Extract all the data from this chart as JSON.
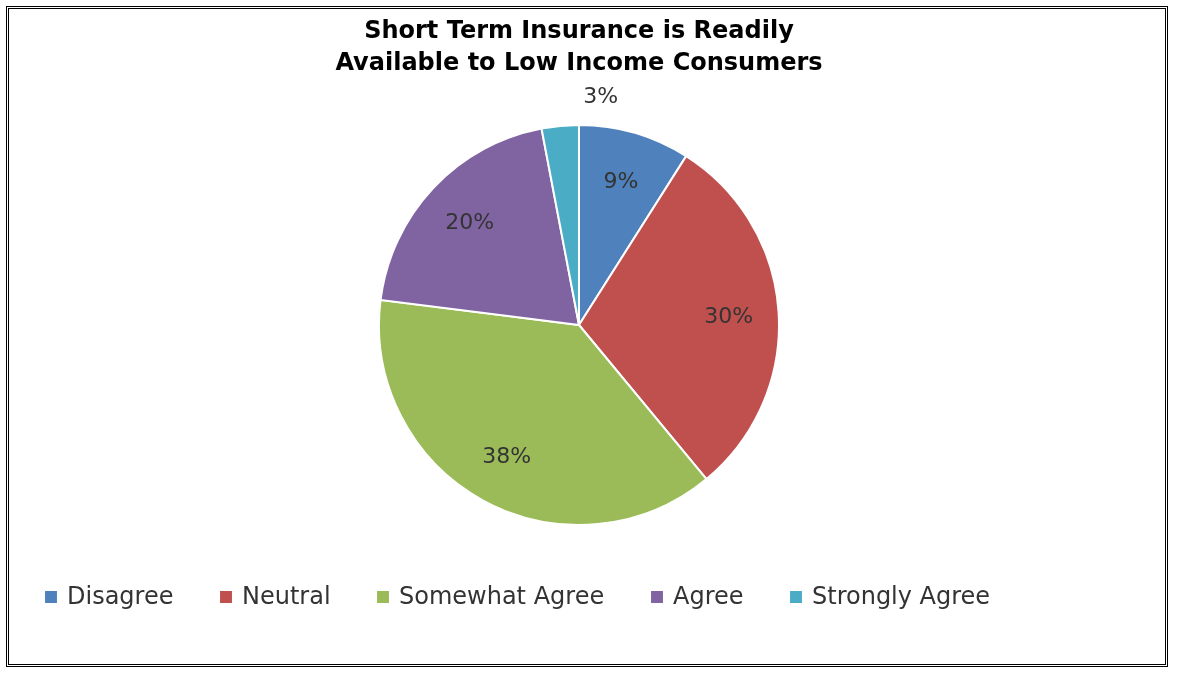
{
  "chart_data": {
    "type": "pie",
    "title": "Short Term Insurance is Readily Available to Low Income Consumers",
    "categories": [
      "Disagree",
      "Neutral",
      "Somewhat Agree",
      "Agree",
      "Strongly Agree"
    ],
    "values": [
      9,
      30,
      38,
      20,
      3
    ],
    "value_labels": [
      "9%",
      "30%",
      "38%",
      "20%",
      "3%"
    ],
    "colors": [
      "#4f81bd",
      "#c0504d",
      "#9bbb59",
      "#8064a2",
      "#4bacc6"
    ],
    "legend": "bottom"
  }
}
